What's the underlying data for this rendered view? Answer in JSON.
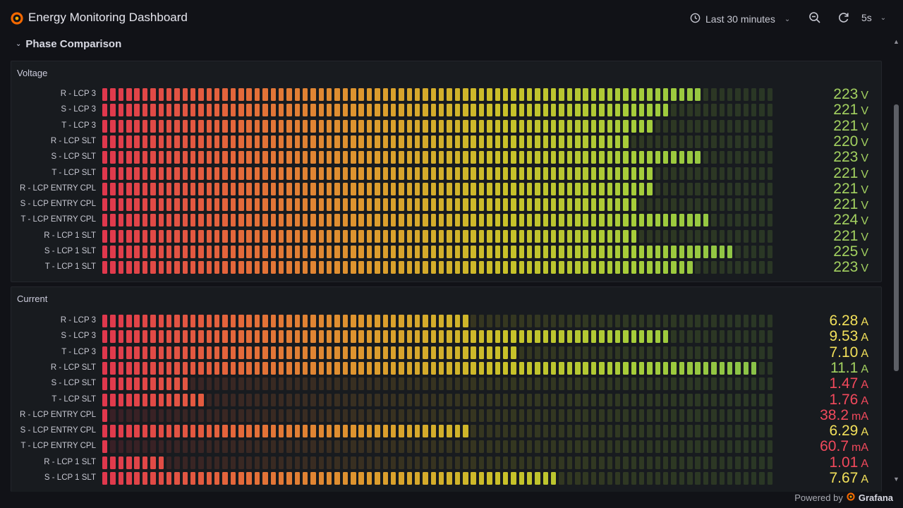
{
  "header": {
    "title": "Energy Monitoring Dashboard",
    "time_range": "Last 30 minutes",
    "refresh_interval": "5s",
    "icons": [
      "grafana-logo-icon",
      "clock-icon",
      "chevron-down-icon",
      "zoom-out-icon",
      "refresh-icon"
    ]
  },
  "row": {
    "title": "Phase Comparison",
    "collapsed": false
  },
  "colors": {
    "background": "#111217",
    "panel": "#181b1f",
    "value_green": "#a3d160",
    "value_yellow": "#f2e05a",
    "value_red": "#f2495c",
    "gradient": [
      "#e0384d",
      "#e4693a",
      "#dd9b2d",
      "#c9c129",
      "#a5cd3a",
      "#86c14a"
    ]
  },
  "panels": {
    "voltage": {
      "title": "Voltage",
      "min": 0,
      "max": 250,
      "rows": [
        {
          "label": "R - LCP 3",
          "value": "223",
          "unit": "V",
          "fraction": 0.89,
          "color": "green"
        },
        {
          "label": "S - LCP 3",
          "value": "221",
          "unit": "V",
          "fraction": 0.84,
          "color": "green"
        },
        {
          "label": "T - LCP 3",
          "value": "221",
          "unit": "V",
          "fraction": 0.82,
          "color": "green"
        },
        {
          "label": "R - LCP SLT",
          "value": "220",
          "unit": "V",
          "fraction": 0.79,
          "color": "green"
        },
        {
          "label": "S - LCP SLT",
          "value": "223",
          "unit": "V",
          "fraction": 0.89,
          "color": "green"
        },
        {
          "label": "T - LCP SLT",
          "value": "221",
          "unit": "V",
          "fraction": 0.82,
          "color": "green"
        },
        {
          "label": "R - LCP ENTRY CPL",
          "value": "221",
          "unit": "V",
          "fraction": 0.82,
          "color": "green"
        },
        {
          "label": "S - LCP ENTRY CPL",
          "value": "221",
          "unit": "V",
          "fraction": 0.8,
          "color": "green"
        },
        {
          "label": "T - LCP ENTRY CPL",
          "value": "224",
          "unit": "V",
          "fraction": 0.91,
          "color": "green"
        },
        {
          "label": "R - LCP 1 SLT",
          "value": "221",
          "unit": "V",
          "fraction": 0.8,
          "color": "green"
        },
        {
          "label": "S - LCP 1 SLT",
          "value": "225",
          "unit": "V",
          "fraction": 0.94,
          "color": "green"
        },
        {
          "label": "T - LCP 1 SLT",
          "value": "223",
          "unit": "V",
          "fraction": 0.88,
          "color": "green"
        }
      ]
    },
    "current": {
      "title": "Current",
      "rows": [
        {
          "label": "R - LCP 3",
          "value": "6.28",
          "unit": "A",
          "fraction": 0.55,
          "color": "yellow"
        },
        {
          "label": "S - LCP 3",
          "value": "9.53",
          "unit": "A",
          "fraction": 0.85,
          "color": "yellow"
        },
        {
          "label": "T - LCP 3",
          "value": "7.10",
          "unit": "A",
          "fraction": 0.62,
          "color": "yellow"
        },
        {
          "label": "R - LCP SLT",
          "value": "11.1",
          "unit": "A",
          "fraction": 0.98,
          "color": "green"
        },
        {
          "label": "S - LCP SLT",
          "value": "1.47",
          "unit": "A",
          "fraction": 0.13,
          "color": "red"
        },
        {
          "label": "T - LCP SLT",
          "value": "1.76",
          "unit": "A",
          "fraction": 0.15,
          "color": "red"
        },
        {
          "label": "R - LCP ENTRY CPL",
          "value": "38.2",
          "unit": "mA",
          "fraction": 0.01,
          "color": "red"
        },
        {
          "label": "S - LCP ENTRY CPL",
          "value": "6.29",
          "unit": "A",
          "fraction": 0.55,
          "color": "yellow"
        },
        {
          "label": "T - LCP ENTRY CPL",
          "value": "60.7",
          "unit": "mA",
          "fraction": 0.01,
          "color": "red"
        },
        {
          "label": "R - LCP 1 SLT",
          "value": "1.01",
          "unit": "A",
          "fraction": 0.09,
          "color": "red"
        },
        {
          "label": "S - LCP 1 SLT",
          "value": "7.67",
          "unit": "A",
          "fraction": 0.68,
          "color": "yellow"
        }
      ]
    }
  },
  "footer": {
    "powered_by": "Powered by",
    "brand": "Grafana"
  }
}
